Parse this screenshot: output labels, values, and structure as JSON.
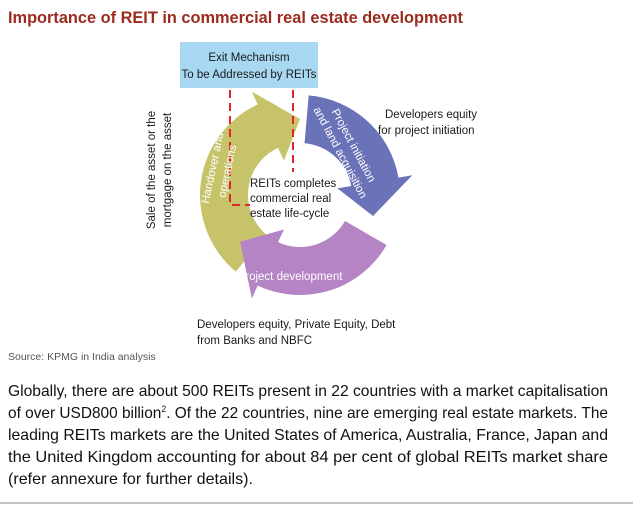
{
  "header": {
    "title": "Importance of REIT in commercial real estate development"
  },
  "diagram": {
    "exit_box": {
      "line_1": "Exit Mechanism",
      "line_2": "To be Addressed by REITs"
    },
    "developers_note": {
      "line_1": "Developers equity",
      "line_2": "for project initiation"
    },
    "arrows": [
      {
        "line_1": "Handover and",
        "line_2": "operations"
      },
      {
        "line_1": "Project initiation",
        "line_2": "and land acquisition"
      },
      {
        "line_1": "Project development"
      }
    ],
    "center": {
      "line_1": "REITs completes",
      "line_2": "commercial real",
      "line_3": "estate life-cycle"
    },
    "side_note": {
      "line_1": "Sale of the asset or the",
      "line_2": "mortgage on the asset"
    },
    "bottom_note": {
      "line_1": "Developers equity, Private Equity, Debt",
      "line_2": "from Banks and NBFC"
    }
  },
  "source": "Source: KPMG in India analysis",
  "paragraph": {
    "line_1": "Globally, there are about 500 REITs present in 22 countries with a market capitalisation",
    "line_2_before": "of over USD800 billion",
    "footnote": "2",
    "line_2_after": ". Of the 22 countries, nine are emerging real estate markets. The",
    "lines_rest": [
      "leading REITs markets are the United States of America, Australia, France, Japan and",
      "the United Kingdom accounting for about 84 per cent of global REITs market share",
      "(refer annexure for further details)."
    ]
  }
}
